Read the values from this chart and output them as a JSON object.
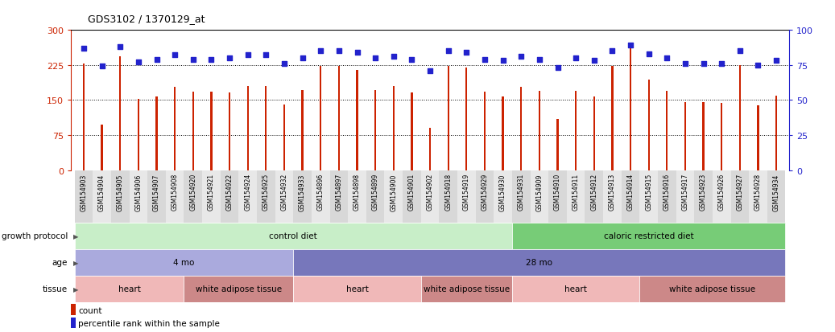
{
  "title": "GDS3102 / 1370129_at",
  "samples": [
    "GSM154903",
    "GSM154904",
    "GSM154905",
    "GSM154906",
    "GSM154907",
    "GSM154908",
    "GSM154920",
    "GSM154921",
    "GSM154922",
    "GSM154924",
    "GSM154925",
    "GSM154932",
    "GSM154933",
    "GSM154896",
    "GSM154897",
    "GSM154898",
    "GSM154899",
    "GSM154900",
    "GSM154901",
    "GSM154902",
    "GSM154918",
    "GSM154919",
    "GSM154929",
    "GSM154930",
    "GSM154931",
    "GSM154909",
    "GSM154910",
    "GSM154911",
    "GSM154912",
    "GSM154913",
    "GSM154914",
    "GSM154915",
    "GSM154916",
    "GSM154917",
    "GSM154923",
    "GSM154926",
    "GSM154927",
    "GSM154928",
    "GSM154934"
  ],
  "counts": [
    228,
    97,
    243,
    153,
    158,
    178,
    168,
    168,
    167,
    180,
    180,
    141,
    172,
    222,
    222,
    215,
    171,
    180,
    167,
    90,
    222,
    220,
    168,
    157,
    178,
    169,
    109,
    170,
    157,
    222,
    260,
    193,
    169,
    145,
    145,
    144,
    224,
    138,
    160
  ],
  "percentiles": [
    87,
    74,
    88,
    77,
    79,
    82,
    79,
    79,
    80,
    82,
    82,
    76,
    80,
    85,
    85,
    84,
    80,
    81,
    79,
    71,
    85,
    84,
    79,
    78,
    81,
    79,
    73,
    80,
    78,
    85,
    89,
    83,
    80,
    76,
    76,
    76,
    85,
    75,
    78
  ],
  "ylim_left": [
    0,
    300
  ],
  "ylim_right": [
    0,
    100
  ],
  "yticks_left": [
    0,
    75,
    150,
    225,
    300
  ],
  "yticks_right": [
    0,
    25,
    50,
    75,
    100
  ],
  "bar_color": "#cc2200",
  "marker_color": "#2222cc",
  "bg_color": "#ffffff",
  "grid_lines": [
    75,
    150,
    225
  ],
  "growth_protocol_groups": [
    {
      "label": "control diet",
      "start": 0,
      "end": 24,
      "color": "#c8eec8"
    },
    {
      "label": "caloric restricted diet",
      "start": 24,
      "end": 39,
      "color": "#77cc77"
    }
  ],
  "age_groups": [
    {
      "label": "4 mo",
      "start": 0,
      "end": 12,
      "color": "#aaaadd"
    },
    {
      "label": "28 mo",
      "start": 12,
      "end": 39,
      "color": "#7777bb"
    }
  ],
  "tissue_groups": [
    {
      "label": "heart",
      "start": 0,
      "end": 6,
      "color": "#f0b8b8"
    },
    {
      "label": "white adipose tissue",
      "start": 6,
      "end": 12,
      "color": "#cc8888"
    },
    {
      "label": "heart",
      "start": 12,
      "end": 19,
      "color": "#f0b8b8"
    },
    {
      "label": "white adipose tissue",
      "start": 19,
      "end": 24,
      "color": "#cc8888"
    },
    {
      "label": "heart",
      "start": 24,
      "end": 31,
      "color": "#f0b8b8"
    },
    {
      "label": "white adipose tissue",
      "start": 31,
      "end": 39,
      "color": "#cc8888"
    }
  ],
  "row_labels": [
    "growth protocol",
    "age",
    "tissue"
  ],
  "legend_items": [
    {
      "label": "count",
      "color": "#cc2200"
    },
    {
      "label": "percentile rank within the sample",
      "color": "#2222cc"
    }
  ]
}
